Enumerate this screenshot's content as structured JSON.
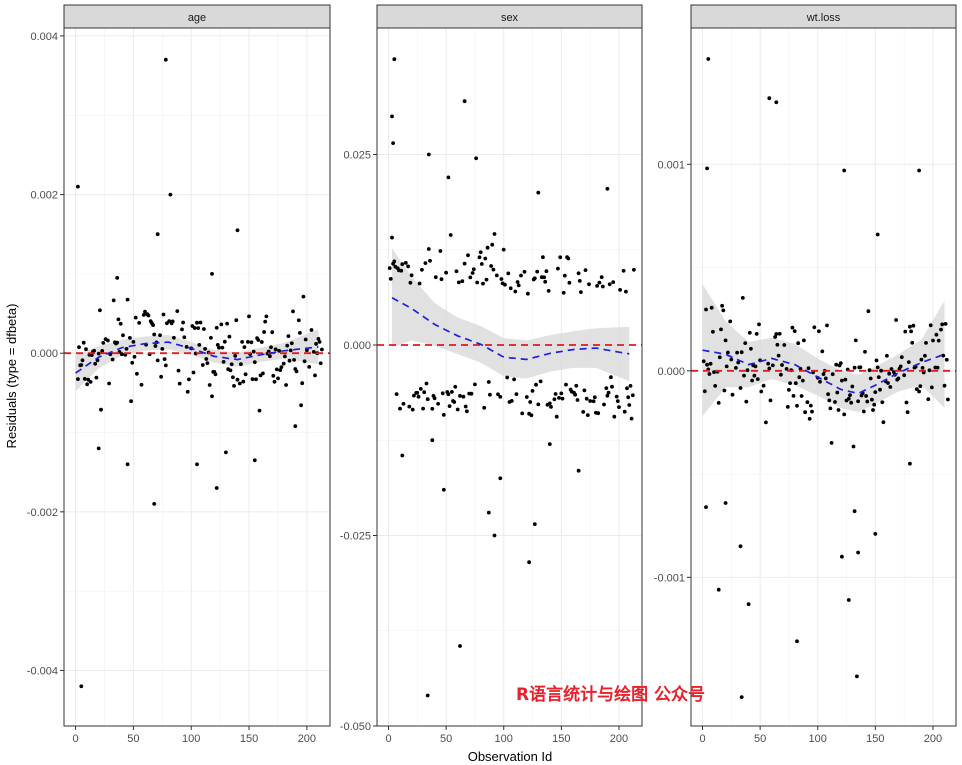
{
  "chart_data": {
    "type": "scatter",
    "xlabel": "Observation Id",
    "ylabel": "Residuals (type = dfbeta)",
    "watermark": "R语言统计与绘图 公众号",
    "colors": {
      "points": "#000000",
      "smooth": "#1f1fe0",
      "ribbon": "#d9d9d9",
      "zero_line": "#e41a1c",
      "strip_bg": "#d9d9d9"
    },
    "grid": true,
    "panels": [
      {
        "strip": "age",
        "xlim": [
          -10,
          220
        ],
        "ylim": [
          -0.0047,
          0.0041
        ],
        "x_ticks": [
          0,
          50,
          100,
          150,
          200
        ],
        "x_tick_labels": [
          "0",
          "50",
          "100",
          "150",
          "200"
        ],
        "y_ticks": [
          -0.004,
          -0.002,
          0.0,
          0.002,
          0.004
        ],
        "y_tick_labels": [
          "-0.004",
          "-0.002",
          "0.000",
          "0.002",
          "0.004"
        ],
        "highlight_points": [
          [
            2,
            0.0021
          ],
          [
            5,
            -0.0042
          ],
          [
            78,
            0.0037
          ],
          [
            82,
            0.002
          ],
          [
            71,
            0.0015
          ],
          [
            68,
            -0.0019
          ],
          [
            140,
            0.00155
          ],
          [
            122,
            -0.0017
          ],
          [
            45,
            -0.0014
          ],
          [
            105,
            -0.0014
          ],
          [
            20,
            -0.0012
          ],
          [
            130,
            -0.00125
          ],
          [
            155,
            -0.00135
          ],
          [
            190,
            -0.00092
          ],
          [
            36,
            0.00095
          ],
          [
            118,
            0.001
          ]
        ],
        "point_spread": 0.00045,
        "smooth": {
          "x": [
            0,
            20,
            40,
            60,
            80,
            100,
            120,
            140,
            160,
            180,
            210
          ],
          "y": [
            -0.00025,
            -5e-05,
            7e-05,
            0.00012,
            0.00014,
            6e-05,
            -4e-05,
            -8e-05,
            -2e-05,
            3e-05,
            8e-05
          ],
          "se": [
            0.00023,
            0.00014,
            0.0001,
            9e-05,
            9e-05,
            8e-05,
            8e-05,
            9e-05,
            9e-05,
            0.0001,
            0.00022
          ]
        }
      },
      {
        "strip": "sex",
        "xlim": [
          -10,
          220
        ],
        "ylim": [
          -0.05,
          0.0416
        ],
        "x_ticks": [
          0,
          50,
          100,
          150,
          200
        ],
        "x_tick_labels": [
          "0",
          "50",
          "100",
          "150",
          "200"
        ],
        "y_ticks": [
          -0.05,
          -0.025,
          0.0,
          0.025
        ],
        "y_tick_labels": [
          "-0.050",
          "-0.025",
          "0.000",
          "0.025"
        ],
        "highlight_points": [
          [
            5,
            0.0375
          ],
          [
            3,
            0.03
          ],
          [
            4,
            0.0265
          ],
          [
            66,
            0.032
          ],
          [
            35,
            0.025
          ],
          [
            52,
            0.022
          ],
          [
            76,
            0.0245
          ],
          [
            130,
            0.02
          ],
          [
            190,
            0.0205
          ],
          [
            34,
            -0.046
          ],
          [
            62,
            -0.0395
          ],
          [
            122,
            -0.0285
          ],
          [
            127,
            -0.0235
          ],
          [
            87,
            -0.022
          ],
          [
            92,
            -0.025
          ],
          [
            97,
            -0.0175
          ],
          [
            48,
            -0.019
          ],
          [
            12,
            -0.0145
          ],
          [
            38,
            -0.0125
          ],
          [
            140,
            -0.013
          ],
          [
            165,
            -0.0165
          ]
        ],
        "point_spread": 0.0085,
        "smooth": {
          "x": [
            3,
            20,
            40,
            60,
            80,
            100,
            120,
            140,
            160,
            180,
            210
          ],
          "y": [
            0.0062,
            0.0048,
            0.0027,
            0.0012,
            0.0001,
            -0.0016,
            -0.0019,
            -0.0011,
            -0.0006,
            -0.0004,
            -0.0012
          ],
          "se": [
            0.0065,
            0.0042,
            0.0028,
            0.0024,
            0.0024,
            0.0025,
            0.0025,
            0.0024,
            0.0024,
            0.0026,
            0.0036
          ]
        }
      },
      {
        "strip": "wt.loss",
        "xlim": [
          -10,
          220
        ],
        "ylim": [
          -0.00172,
          0.00166
        ],
        "x_ticks": [
          0,
          50,
          100,
          150,
          200
        ],
        "x_tick_labels": [
          "0",
          "50",
          "100",
          "150",
          "200"
        ],
        "y_ticks": [
          -0.001,
          0.0,
          0.001
        ],
        "y_tick_labels": [
          "-0.001",
          "0.000",
          "0.001"
        ],
        "highlight_points": [
          [
            5,
            0.00151
          ],
          [
            4,
            0.00098
          ],
          [
            58,
            0.00132
          ],
          [
            64,
            0.0013
          ],
          [
            123,
            0.00097
          ],
          [
            188,
            0.00097
          ],
          [
            152,
            0.00066
          ],
          [
            14,
            -0.00106
          ],
          [
            3,
            -0.00066
          ],
          [
            20,
            -0.00064
          ],
          [
            33,
            -0.00085
          ],
          [
            40,
            -0.00113
          ],
          [
            34,
            -0.00158
          ],
          [
            82,
            -0.00131
          ],
          [
            134,
            -0.00148
          ],
          [
            121,
            -0.0009
          ],
          [
            127,
            -0.00111
          ],
          [
            132,
            -0.00068
          ],
          [
            135,
            -0.00088
          ],
          [
            150,
            -0.00079
          ],
          [
            180,
            -0.00045
          ]
        ],
        "point_spread": 0.00024,
        "smooth": {
          "x": [
            0,
            20,
            40,
            60,
            80,
            100,
            120,
            135,
            150,
            170,
            190,
            210
          ],
          "y": [
            0.0001,
            8e-05,
            3e-05,
            6e-05,
            3e-05,
            -3e-05,
            -9e-05,
            -0.00011,
            -7e-05,
            -1e-05,
            4e-05,
            8e-05
          ],
          "se": [
            0.00032,
            0.00016,
            0.00011,
            0.0001,
            0.0001,
            9e-05,
            9e-05,
            9e-05,
            9e-05,
            9e-05,
            0.00011,
            0.00026
          ]
        }
      }
    ]
  }
}
